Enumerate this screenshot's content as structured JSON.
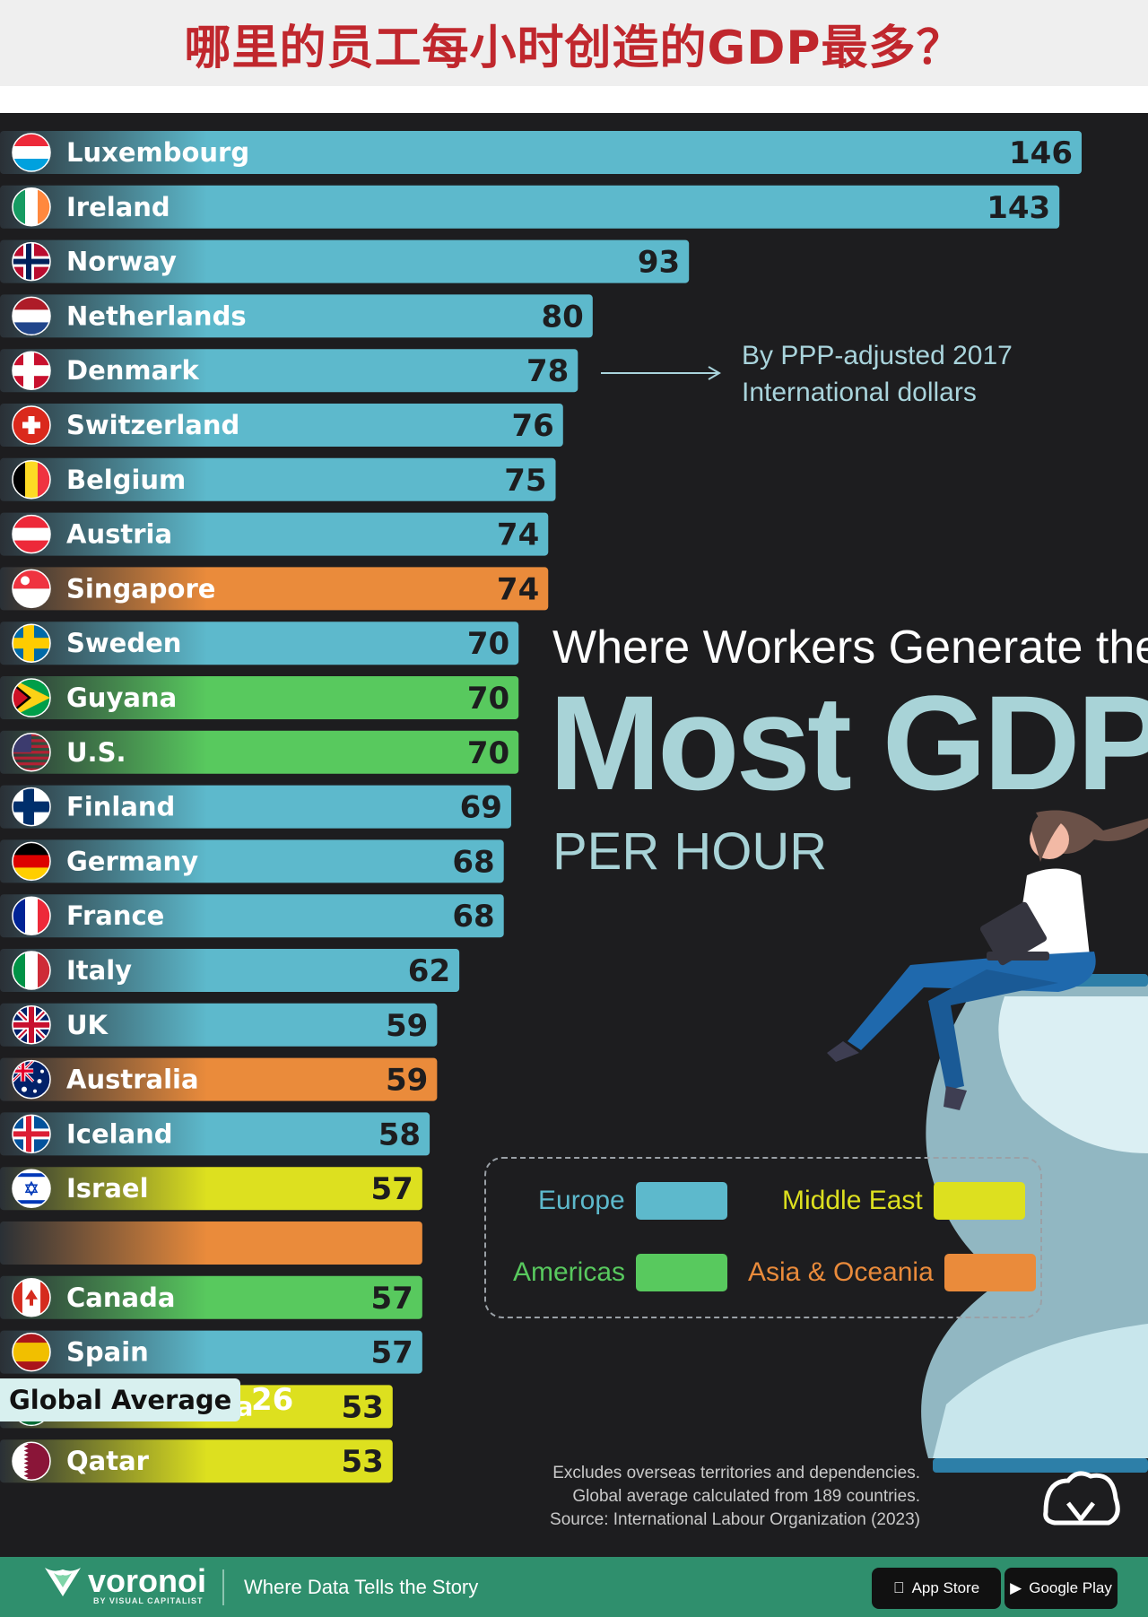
{
  "banner": {
    "title": "哪里的员工每小时创造的GDP最多？"
  },
  "headline": {
    "line1": "Where Workers Generate the",
    "line2": "Most GDP",
    "line3": "PER HOUR"
  },
  "unit_note": {
    "line1": "By PPP-adjusted 2017",
    "line2": "International dollars"
  },
  "legend": [
    {
      "label": "Europe",
      "color": "#5db9cc"
    },
    {
      "label": "Middle East",
      "color": "#dde01f"
    },
    {
      "label": "Americas",
      "color": "#58c95e"
    },
    {
      "label": "Asia & Oceania",
      "color": "#ea8b3b"
    }
  ],
  "notes": {
    "line1": "Excludes overseas territories and dependencies.",
    "line2": "Global average calculated from 189 countries.",
    "line3": "Source: International Labour Organization (2023)"
  },
  "global_average": {
    "label": "Global Average",
    "value": "26"
  },
  "footer": {
    "brand": "voronoi",
    "brand_sub": "BY VISUAL CAPITALIST",
    "tagline": "Where Data Tells the Story",
    "app_store": "App Store",
    "google_play": "Google Play"
  },
  "chart_data": {
    "type": "bar",
    "orientation": "horizontal",
    "title": "Where Workers Generate the Most GDP Per Hour",
    "unit": "By PPP-adjusted 2017 International dollars",
    "xlim": [
      0,
      150
    ],
    "categories": [
      "Luxembourg",
      "Ireland",
      "Norway",
      "Netherlands",
      "Denmark",
      "Switzerland",
      "Belgium",
      "Austria",
      "Singapore",
      "Sweden",
      "Guyana",
      "U.S.",
      "Finland",
      "Germany",
      "France",
      "Italy",
      "UK",
      "Australia",
      "Iceland",
      "Israel",
      "",
      "Canada",
      "Spain",
      "Saudi Arabia",
      "Qatar"
    ],
    "values": [
      146,
      143,
      93,
      80,
      78,
      76,
      75,
      74,
      74,
      70,
      70,
      70,
      69,
      68,
      68,
      62,
      59,
      59,
      58,
      57,
      57,
      57,
      57,
      53,
      53
    ],
    "value_labels": [
      "146",
      "143",
      "93",
      "80",
      "78",
      "76",
      "75",
      "74",
      "74",
      "70",
      "70",
      "70",
      "69",
      "68",
      "68",
      "62",
      "59",
      "59",
      "58",
      "57",
      "",
      "57",
      "57",
      "53",
      "53"
    ],
    "regions": [
      "Europe",
      "Europe",
      "Europe",
      "Europe",
      "Europe",
      "Europe",
      "Europe",
      "Europe",
      "Asia & Oceania",
      "Europe",
      "Americas",
      "Americas",
      "Europe",
      "Europe",
      "Europe",
      "Europe",
      "Europe",
      "Asia & Oceania",
      "Europe",
      "Middle East",
      "Asia & Oceania",
      "Americas",
      "Europe",
      "Middle East",
      "Middle East"
    ],
    "flags": [
      {
        "type": "h",
        "colors": [
          "#ed2939",
          "#ffffff",
          "#00a1de"
        ]
      },
      {
        "type": "v",
        "colors": [
          "#169b62",
          "#ffffff",
          "#ff883e"
        ]
      },
      {
        "type": "nordic",
        "colors": [
          "#ba0c2f",
          "#ffffff",
          "#00205b"
        ]
      },
      {
        "type": "h",
        "colors": [
          "#ae1c28",
          "#ffffff",
          "#21468b"
        ]
      },
      {
        "type": "nordic",
        "colors": [
          "#c8102e",
          "#ffffff",
          "#ffffff"
        ]
      },
      {
        "type": "swiss",
        "colors": [
          "#da291c",
          "#ffffff"
        ]
      },
      {
        "type": "v",
        "colors": [
          "#000000",
          "#fdda24",
          "#ef3340"
        ]
      },
      {
        "type": "h",
        "colors": [
          "#ed2939",
          "#ffffff",
          "#ed2939"
        ]
      },
      {
        "type": "h2",
        "colors": [
          "#ef3340",
          "#ffffff"
        ]
      },
      {
        "type": "nordic",
        "colors": [
          "#006aa7",
          "#fecc00",
          "#fecc00"
        ]
      },
      {
        "type": "guyana",
        "colors": [
          "#009e49",
          "#fcd116",
          "#ce1126"
        ]
      },
      {
        "type": "us",
        "colors": [
          "#b22234",
          "#ffffff",
          "#3c3b6e"
        ]
      },
      {
        "type": "nordic",
        "colors": [
          "#ffffff",
          "#002f6c",
          "#002f6c"
        ]
      },
      {
        "type": "h",
        "colors": [
          "#000000",
          "#dd0000",
          "#ffce00"
        ]
      },
      {
        "type": "v",
        "colors": [
          "#002395",
          "#ffffff",
          "#ed2939"
        ]
      },
      {
        "type": "v",
        "colors": [
          "#009246",
          "#ffffff",
          "#ce2b37"
        ]
      },
      {
        "type": "uk",
        "colors": [
          "#012169",
          "#ffffff",
          "#c8102e"
        ]
      },
      {
        "type": "au",
        "colors": [
          "#012169",
          "#ffffff",
          "#e4002b"
        ]
      },
      {
        "type": "nordic",
        "colors": [
          "#02529c",
          "#ffffff",
          "#dc1e35"
        ]
      },
      {
        "type": "israel",
        "colors": [
          "#ffffff",
          "#0038b8"
        ]
      },
      {
        "type": "none",
        "colors": []
      },
      {
        "type": "canada",
        "colors": [
          "#d52b1e",
          "#ffffff"
        ]
      },
      {
        "type": "h3",
        "colors": [
          "#aa151b",
          "#f1bf00",
          "#aa151b"
        ]
      },
      {
        "type": "solid",
        "colors": [
          "#006c35",
          "#ffffff"
        ]
      },
      {
        "type": "qatar",
        "colors": [
          "#8a1538",
          "#ffffff"
        ]
      }
    ],
    "global_average": 26
  }
}
